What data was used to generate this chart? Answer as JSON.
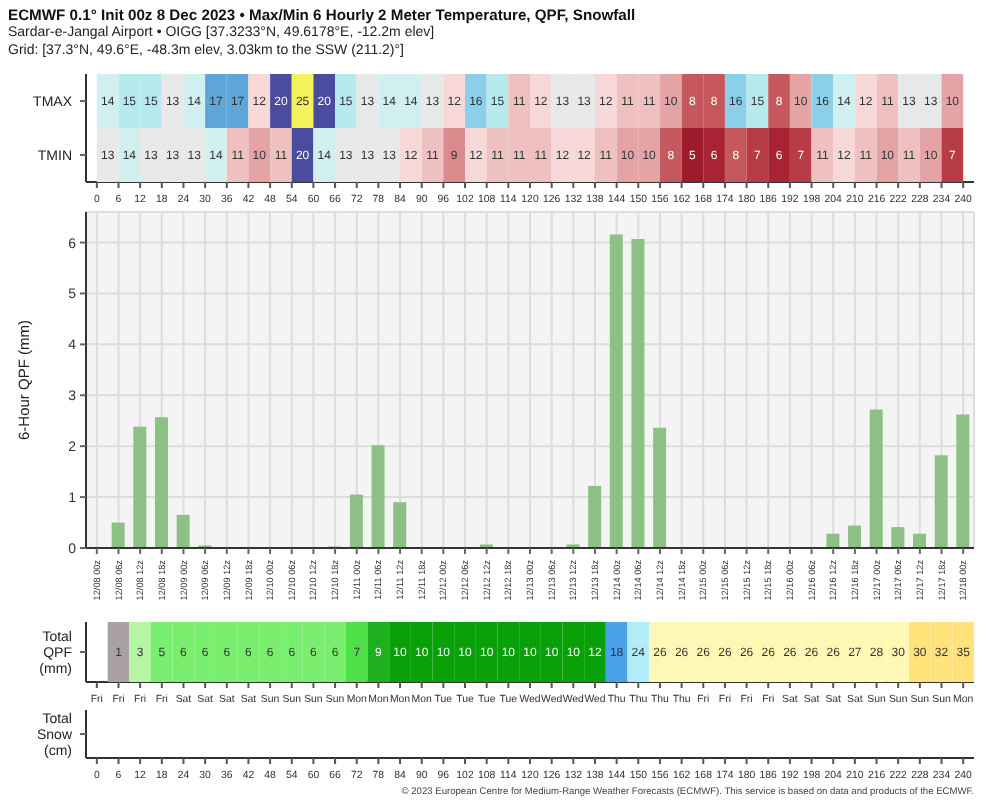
{
  "chart_data": [
    {
      "type": "heatmap",
      "title": "ECMWF 0.1° Init 00z 8 Dec 2023 • Max/Min 6 Hourly 2 Meter Temperature, QPF, Snowfall",
      "subtitle": "Sardar-e-Jangal Airport • OIGG [37.3233°N, 49.6178°E, -12.2m elev]\nGrid: [37.3°N, 49.6°E, -48.3m elev, 3.03km to the SSW (211.2)°]",
      "data_labels": true,
      "x": [
        3,
        9,
        15,
        21,
        27,
        33,
        39,
        45,
        51,
        57,
        63,
        69,
        75,
        81,
        87,
        93,
        99,
        105,
        111,
        117,
        123,
        129,
        135,
        141,
        147,
        153,
        159,
        165,
        171,
        177,
        183,
        189,
        195,
        201,
        207,
        213,
        219,
        225,
        231,
        237
      ],
      "y_categories": [
        "TMAX",
        "TMIN"
      ],
      "cells": [
        [
          14,
          15,
          15,
          13,
          14,
          17,
          17,
          12,
          20,
          25,
          20,
          15,
          13,
          14,
          14,
          13,
          12,
          16,
          15,
          11,
          12,
          13,
          13,
          12,
          11,
          11,
          10,
          8,
          8,
          16,
          15,
          8,
          10,
          16,
          14,
          12,
          11,
          13,
          13,
          10
        ],
        [
          13,
          14,
          13,
          13,
          13,
          14,
          11,
          10,
          11,
          20,
          14,
          13,
          13,
          13,
          12,
          11,
          9,
          12,
          11,
          11,
          11,
          12,
          12,
          11,
          10,
          10,
          8,
          5,
          6,
          8,
          7,
          6,
          7,
          11,
          12,
          11,
          10,
          11,
          10,
          7
        ]
      ],
      "colors": [
        [
          "#d2efef",
          "#b6eaee",
          "#b6eaee",
          "#e6e9e8",
          "#d2efef",
          "#5ea6d8",
          "#5ea6d8",
          "#f7d8d8",
          "#4c4c9e",
          "#f6f25c",
          "#4c4c9e",
          "#b6eaee",
          "#e6e9e8",
          "#d2efef",
          "#d2efef",
          "#e6e9e8",
          "#f7d8d8",
          "#8ccfe8",
          "#b6eaee",
          "#efc0c0",
          "#f7d8d8",
          "#e6e9e8",
          "#e6e9e8",
          "#f7d8d8",
          "#efc0c0",
          "#efc0c0",
          "#e4a4a6",
          "#c4585c",
          "#c4585c",
          "#8ccfe8",
          "#b6eaee",
          "#c4585c",
          "#e4a4a6",
          "#8ccfe8",
          "#d2efef",
          "#f7d8d8",
          "#efc0c0",
          "#e6e9e8",
          "#e6e9e8",
          "#e4a4a6"
        ],
        [
          "#e6e9e8",
          "#d2efef",
          "#e6e9e8",
          "#e6e9e8",
          "#e6e9e8",
          "#d2efef",
          "#efc0c0",
          "#e4a4a6",
          "#efc0c0",
          "#4c4c9e",
          "#d2efef",
          "#e6e9e8",
          "#e6e9e8",
          "#e6e9e8",
          "#f7d8d8",
          "#efc0c0",
          "#d88a8c",
          "#f7d8d8",
          "#efc0c0",
          "#efc0c0",
          "#efc0c0",
          "#f7d8d8",
          "#f7d8d8",
          "#efc0c0",
          "#e4a4a6",
          "#e4a4a6",
          "#c4585c",
          "#9e1b2b",
          "#a82434",
          "#c4585c",
          "#b83c44",
          "#a82434",
          "#b83c44",
          "#efc0c0",
          "#f7d8d8",
          "#efc0c0",
          "#e4a4a6",
          "#efc0c0",
          "#e4a4a6",
          "#b83c44"
        ]
      ],
      "xlim": [
        -3,
        243
      ],
      "xticks": [
        0,
        6,
        12,
        18,
        24,
        30,
        36,
        42,
        48,
        54,
        60,
        66,
        72,
        78,
        84,
        90,
        96,
        102,
        108,
        114,
        120,
        126,
        132,
        138,
        144,
        150,
        156,
        162,
        168,
        174,
        180,
        186,
        192,
        198,
        204,
        210,
        216,
        222,
        228,
        234,
        240
      ]
    },
    {
      "type": "bar",
      "ylabel": "6-Hour QPF (mm)",
      "color": "#8cc084",
      "grid": true,
      "x": [
        "2023-12-08T06:00",
        "2023-12-08T12:00",
        "2023-12-08T18:00",
        "2023-12-09T00:00",
        "2023-12-09T06:00",
        "2023-12-09T12:00",
        "2023-12-09T18:00",
        "2023-12-10T00:00",
        "2023-12-10T06:00",
        "2023-12-10T12:00",
        "2023-12-10T18:00",
        "2023-12-11T00:00",
        "2023-12-11T06:00",
        "2023-12-11T12:00",
        "2023-12-11T18:00",
        "2023-12-12T00:00",
        "2023-12-12T06:00",
        "2023-12-12T12:00",
        "2023-12-12T18:00",
        "2023-12-13T00:00",
        "2023-12-13T06:00",
        "2023-12-13T12:00",
        "2023-12-13T18:00",
        "2023-12-14T00:00",
        "2023-12-14T06:00",
        "2023-12-14T12:00",
        "2023-12-14T18:00",
        "2023-12-15T00:00",
        "2023-12-15T06:00",
        "2023-12-15T12:00",
        "2023-12-15T18:00",
        "2023-12-16T00:00",
        "2023-12-16T06:00",
        "2023-12-16T12:00",
        "2023-12-16T18:00",
        "2023-12-17T00:00",
        "2023-12-17T06:00",
        "2023-12-17T12:00",
        "2023-12-17T18:00",
        "2023-12-18T00:00"
      ],
      "values": [
        0.5,
        2.38,
        2.57,
        0.65,
        0.05,
        0,
        0,
        0,
        0,
        0,
        0.03,
        1.05,
        2.02,
        0.9,
        0,
        0,
        0,
        0.07,
        0,
        0,
        0,
        0.07,
        1.22,
        6.16,
        6.07,
        2.36,
        0,
        0,
        0,
        0,
        0,
        0,
        0,
        0.28,
        0.44,
        2.72,
        0.41,
        0.28,
        1.82,
        2.62
      ],
      "xlim": [
        "2023-12-07T21:00",
        "2023-12-18T03:00"
      ],
      "ylim": [
        0,
        6.6
      ],
      "yticks": [
        0,
        1,
        2,
        3,
        4,
        5,
        6
      ],
      "xticks": [
        {
          "value": "2023-12-08T00:00",
          "label": "12/08 00z"
        },
        {
          "value": "2023-12-08T06:00",
          "label": "12/08 06z"
        },
        {
          "value": "2023-12-08T12:00",
          "label": "12/08 12z"
        },
        {
          "value": "2023-12-08T18:00",
          "label": "12/08 18z"
        },
        {
          "value": "2023-12-09T00:00",
          "label": "12/09 00z"
        },
        {
          "value": "2023-12-09T06:00",
          "label": "12/09 06z"
        },
        {
          "value": "2023-12-09T12:00",
          "label": "12/09 12z"
        },
        {
          "value": "2023-12-09T18:00",
          "label": "12/09 18z"
        },
        {
          "value": "2023-12-10T00:00",
          "label": "12/10 00z"
        },
        {
          "value": "2023-12-10T06:00",
          "label": "12/10 06z"
        },
        {
          "value": "2023-12-10T12:00",
          "label": "12/10 12z"
        },
        {
          "value": "2023-12-10T18:00",
          "label": "12/10 18z"
        },
        {
          "value": "2023-12-11T00:00",
          "label": "12/11 00z"
        },
        {
          "value": "2023-12-11T06:00",
          "label": "12/11 06z"
        },
        {
          "value": "2023-12-11T12:00",
          "label": "12/11 12z"
        },
        {
          "value": "2023-12-11T18:00",
          "label": "12/11 18z"
        },
        {
          "value": "2023-12-12T00:00",
          "label": "12/12 00z"
        },
        {
          "value": "2023-12-12T06:00",
          "label": "12/12 06z"
        },
        {
          "value": "2023-12-12T12:00",
          "label": "12/12 12z"
        },
        {
          "value": "2023-12-12T18:00",
          "label": "12/12 18z"
        },
        {
          "value": "2023-12-13T00:00",
          "label": "12/13 00z"
        },
        {
          "value": "2023-12-13T06:00",
          "label": "12/13 06z"
        },
        {
          "value": "2023-12-13T12:00",
          "label": "12/13 12z"
        },
        {
          "value": "2023-12-13T18:00",
          "label": "12/13 18z"
        },
        {
          "value": "2023-12-14T00:00",
          "label": "12/14 00z"
        },
        {
          "value": "2023-12-14T06:00",
          "label": "12/14 06z"
        },
        {
          "value": "2023-12-14T12:00",
          "label": "12/14 12z"
        },
        {
          "value": "2023-12-14T18:00",
          "label": "12/14 18z"
        },
        {
          "value": "2023-12-15T00:00",
          "label": "12/15 00z"
        },
        {
          "value": "2023-12-15T06:00",
          "label": "12/15 06z"
        },
        {
          "value": "2023-12-15T12:00",
          "label": "12/15 12z"
        },
        {
          "value": "2023-12-15T18:00",
          "label": "12/15 18z"
        },
        {
          "value": "2023-12-16T00:00",
          "label": "12/16 00z"
        },
        {
          "value": "2023-12-16T06:00",
          "label": "12/16 06z"
        },
        {
          "value": "2023-12-16T12:00",
          "label": "12/16 12z"
        },
        {
          "value": "2023-12-16T18:00",
          "label": "12/16 18z"
        },
        {
          "value": "2023-12-17T00:00",
          "label": "12/17 00z"
        },
        {
          "value": "2023-12-17T06:00",
          "label": "12/17 06z"
        },
        {
          "value": "2023-12-17T12:00",
          "label": "12/17 12z"
        },
        {
          "value": "2023-12-17T18:00",
          "label": "12/17 18z"
        },
        {
          "value": "2023-12-18T00:00",
          "label": "12/18 00z"
        }
      ]
    },
    {
      "type": "heatmap",
      "data_labels": true,
      "categories": [
        "Fri",
        "Fri",
        "Fri",
        "Fri",
        "Sat",
        "Sat",
        "Sat",
        "Sat",
        "Sun",
        "Sun",
        "Sun",
        "Sun",
        "Mon",
        "Mon",
        "Mon",
        "Mon",
        "Tue",
        "Tue",
        "Tue",
        "Tue",
        "Wed",
        "Wed",
        "Wed",
        "Wed",
        "Thu",
        "Thu",
        "Thu",
        "Thu",
        "Fri",
        "Fri",
        "Fri",
        "Fri",
        "Sat",
        "Sat",
        "Sat",
        "Sat",
        "Sun",
        "Sun",
        "Sun",
        "Sun",
        "Mon"
      ],
      "y_categories": [
        "Total QPF (mm)"
      ],
      "cells": [
        [
          null,
          1,
          3,
          5,
          6,
          6,
          6,
          6,
          6,
          6,
          6,
          6,
          7,
          9,
          10,
          10,
          10,
          10,
          10,
          10,
          10,
          10,
          10,
          12,
          18,
          24,
          26,
          26,
          26,
          26,
          26,
          26,
          26,
          26,
          26,
          27,
          28,
          30,
          30,
          32,
          35
        ]
      ],
      "colors": [
        [
          null,
          "#aaa2a2",
          "#b6f5a6",
          "#7aee6e",
          "#7aee6e",
          "#7aee6e",
          "#7aee6e",
          "#7aee6e",
          "#7aee6e",
          "#7aee6e",
          "#7aee6e",
          "#7aee6e",
          "#4ee046",
          "#1eb01e",
          "#0aa00a",
          "#0aa00a",
          "#0aa00a",
          "#0aa00a",
          "#0aa00a",
          "#0aa00a",
          "#0aa00a",
          "#0aa00a",
          "#0aa00a",
          "#0aa00a",
          "#4aa2ea",
          "#b2ecf8",
          "#fff8b4",
          "#fff8b4",
          "#fff8b4",
          "#fff8b4",
          "#fff8b4",
          "#fff8b4",
          "#fff8b4",
          "#fff8b4",
          "#fff8b4",
          "#fff8b4",
          "#fff8b4",
          "#fff8b4",
          "#ffe27a",
          "#ffe27a",
          "#ffe27a"
        ]
      ]
    },
    {
      "type": "heatmap",
      "x": [
        3,
        9,
        15,
        21,
        27,
        33,
        39,
        45,
        51,
        57,
        63,
        69,
        75,
        81,
        87,
        93,
        99,
        105,
        111,
        117,
        123,
        129,
        135,
        141,
        147,
        153,
        159,
        165,
        171,
        177,
        183,
        189,
        195,
        201,
        207,
        213,
        219,
        225,
        231,
        237
      ],
      "y_categories": [
        "Total Snow (cm)"
      ],
      "cells": [
        [
          null,
          null,
          null,
          null,
          null,
          null,
          null,
          null,
          null,
          null,
          null,
          null,
          null,
          null,
          null,
          null,
          null,
          null,
          null,
          null,
          null,
          null,
          null,
          null,
          null,
          null,
          null,
          null,
          null,
          null,
          null,
          null,
          null,
          null,
          null,
          null,
          null,
          null,
          null,
          null
        ]
      ],
      "xlim": [
        -3,
        243
      ],
      "xticks": [
        0,
        6,
        12,
        18,
        24,
        30,
        36,
        42,
        48,
        54,
        60,
        66,
        72,
        78,
        84,
        90,
        96,
        102,
        108,
        114,
        120,
        126,
        132,
        138,
        144,
        150,
        156,
        162,
        168,
        174,
        180,
        186,
        192,
        198,
        204,
        210,
        216,
        222,
        228,
        234,
        240
      ],
      "annotations": [
        "© 2023 European Centre for Medium-Range Weather Forecasts (ECMWF). This service is based on data and products of the ECMWF."
      ]
    }
  ]
}
